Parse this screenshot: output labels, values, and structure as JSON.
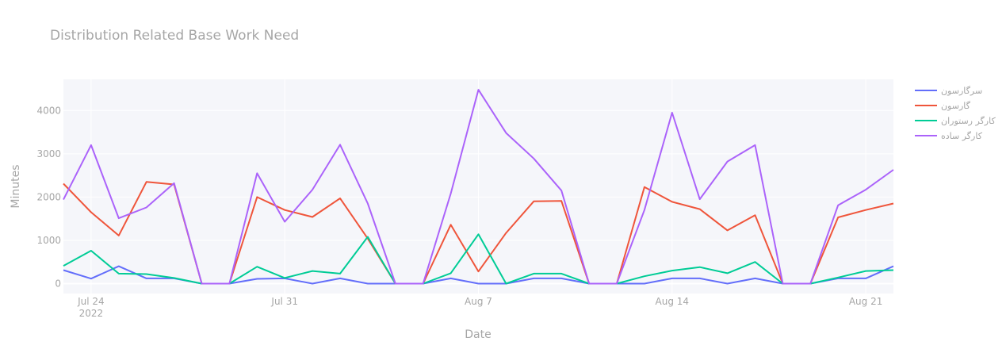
{
  "chart_data": {
    "type": "line",
    "title": "Distribution Related Base Work Need",
    "xlabel": "Date",
    "ylabel": "Minutes",
    "x": [
      "2022-07-23",
      "2022-07-24",
      "2022-07-25",
      "2022-07-26",
      "2022-07-27",
      "2022-07-28",
      "2022-07-29",
      "2022-07-30",
      "2022-07-31",
      "2022-08-01",
      "2022-08-02",
      "2022-08-03",
      "2022-08-04",
      "2022-08-05",
      "2022-08-06",
      "2022-08-07",
      "2022-08-08",
      "2022-08-09",
      "2022-08-10",
      "2022-08-11",
      "2022-08-12",
      "2022-08-13",
      "2022-08-14",
      "2022-08-15",
      "2022-08-16",
      "2022-08-17",
      "2022-08-18",
      "2022-08-19",
      "2022-08-20",
      "2022-08-21",
      "2022-08-22"
    ],
    "x_ticks": [
      {
        "date": "2022-07-24",
        "label": "Jul 24",
        "sublabel": "2022"
      },
      {
        "date": "2022-07-31",
        "label": "Jul 31",
        "sublabel": ""
      },
      {
        "date": "2022-08-07",
        "label": "Aug 7",
        "sublabel": ""
      },
      {
        "date": "2022-08-14",
        "label": "Aug 14",
        "sublabel": ""
      },
      {
        "date": "2022-08-21",
        "label": "Aug 21",
        "sublabel": ""
      }
    ],
    "y_ticks": [
      0,
      1000,
      2000,
      3000,
      4000
    ],
    "ylim": [
      -230,
      4720
    ],
    "series": [
      {
        "name": "سرگارسون",
        "color": "#636efa",
        "values": [
          310,
          115,
          400,
          120,
          120,
          0,
          0,
          110,
          120,
          0,
          120,
          0,
          0,
          0,
          120,
          0,
          0,
          120,
          120,
          0,
          0,
          0,
          120,
          120,
          0,
          120,
          0,
          0,
          120,
          120,
          400
        ]
      },
      {
        "name": "گارسون",
        "color": "#ef553b",
        "values": [
          2310,
          1650,
          1110,
          2350,
          2290,
          0,
          0,
          2000,
          1700,
          1540,
          1970,
          1040,
          0,
          0,
          1360,
          280,
          1170,
          1900,
          1910,
          0,
          0,
          2230,
          1890,
          1720,
          1230,
          1580,
          0,
          0,
          1530,
          1700,
          1850
        ]
      },
      {
        "name": "کارگر رستوران",
        "color": "#00cc96",
        "values": [
          410,
          760,
          230,
          220,
          130,
          0,
          0,
          390,
          130,
          290,
          230,
          1080,
          0,
          0,
          240,
          1140,
          0,
          230,
          230,
          0,
          0,
          170,
          300,
          380,
          240,
          500,
          0,
          0,
          140,
          290,
          310
        ]
      },
      {
        "name": "کارگر ساده",
        "color": "#ab63fa",
        "values": [
          1940,
          3200,
          1510,
          1760,
          2320,
          0,
          0,
          2550,
          1430,
          2170,
          3210,
          1850,
          0,
          0,
          2080,
          4480,
          3480,
          2890,
          2150,
          0,
          0,
          1700,
          3950,
          1950,
          2820,
          3200,
          0,
          0,
          1810,
          2170,
          2630
        ]
      }
    ],
    "legend": "top-right",
    "grid": true
  }
}
